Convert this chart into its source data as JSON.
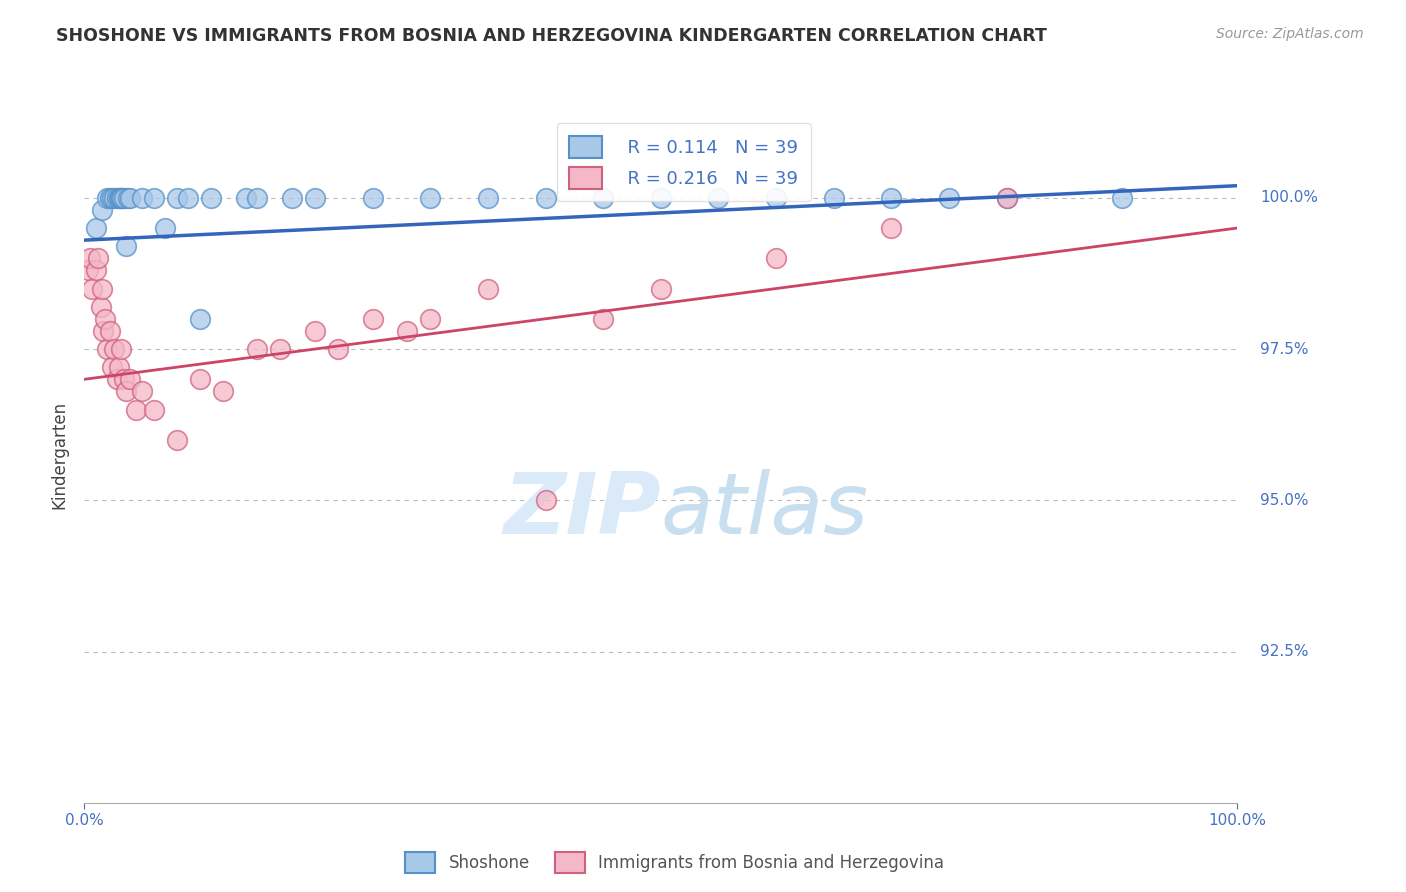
{
  "title": "SHOSHONE VS IMMIGRANTS FROM BOSNIA AND HERZEGOVINA KINDERGARTEN CORRELATION CHART",
  "source": "Source: ZipAtlas.com",
  "ylabel": "Kindergarten",
  "ytick_values": [
    92.5,
    95.0,
    97.5,
    100.0
  ],
  "xlim": [
    0.0,
    100.0
  ],
  "ylim": [
    90.0,
    101.5
  ],
  "legend_r_blue": "R = 0.114",
  "legend_n_blue": "N = 39",
  "legend_r_pink": "R = 0.216",
  "legend_n_pink": "N = 39",
  "blue_color": "#a8c8e8",
  "blue_edge_color": "#5590c8",
  "pink_color": "#f4b8c8",
  "pink_edge_color": "#d06080",
  "blue_line_color": "#3366bb",
  "pink_line_color": "#cc4466",
  "watermark_color": "#daeaf8",
  "background_color": "#ffffff",
  "grid_color": "#bbbbbb",
  "title_color": "#333333",
  "axis_color": "#4472c4",
  "ylabel_color": "#444444",
  "shoshone_x": [
    1.0,
    1.5,
    2.0,
    2.2,
    2.4,
    2.6,
    2.8,
    3.0,
    3.1,
    3.2,
    3.3,
    3.4,
    3.6,
    3.8,
    4.0,
    5.0,
    6.0,
    7.0,
    8.0,
    9.0,
    10.0,
    11.0,
    14.0,
    15.0,
    18.0,
    20.0,
    25.0,
    30.0,
    35.0,
    40.0,
    45.0,
    50.0,
    55.0,
    60.0,
    65.0,
    70.0,
    75.0,
    80.0,
    90.0
  ],
  "shoshone_y": [
    99.5,
    99.8,
    100.0,
    100.0,
    100.0,
    100.0,
    100.0,
    100.0,
    100.0,
    100.0,
    100.0,
    100.0,
    99.2,
    100.0,
    100.0,
    100.0,
    100.0,
    99.5,
    100.0,
    100.0,
    98.0,
    100.0,
    100.0,
    100.0,
    100.0,
    100.0,
    100.0,
    100.0,
    100.0,
    100.0,
    100.0,
    100.0,
    100.0,
    100.0,
    100.0,
    100.0,
    100.0,
    100.0,
    100.0
  ],
  "bosnia_x": [
    0.3,
    0.5,
    0.7,
    1.0,
    1.2,
    1.4,
    1.5,
    1.6,
    1.8,
    2.0,
    2.2,
    2.4,
    2.6,
    2.8,
    3.0,
    3.2,
    3.4,
    3.6,
    4.0,
    4.5,
    5.0,
    6.0,
    8.0,
    10.0,
    12.0,
    15.0,
    17.0,
    20.0,
    22.0,
    25.0,
    28.0,
    30.0,
    35.0,
    40.0,
    45.0,
    50.0,
    60.0,
    70.0,
    80.0
  ],
  "bosnia_y": [
    98.8,
    99.0,
    98.5,
    98.8,
    99.0,
    98.2,
    98.5,
    97.8,
    98.0,
    97.5,
    97.8,
    97.2,
    97.5,
    97.0,
    97.2,
    97.5,
    97.0,
    96.8,
    97.0,
    96.5,
    96.8,
    96.5,
    96.0,
    97.0,
    96.8,
    97.5,
    97.5,
    97.8,
    97.5,
    98.0,
    97.8,
    98.0,
    98.5,
    95.0,
    98.0,
    98.5,
    99.0,
    99.5,
    100.0
  ],
  "blue_trendline_x": [
    0,
    100
  ],
  "blue_trendline_y": [
    99.3,
    100.2
  ],
  "pink_trendline_x": [
    0,
    100
  ],
  "pink_trendline_y": [
    97.0,
    99.5
  ]
}
